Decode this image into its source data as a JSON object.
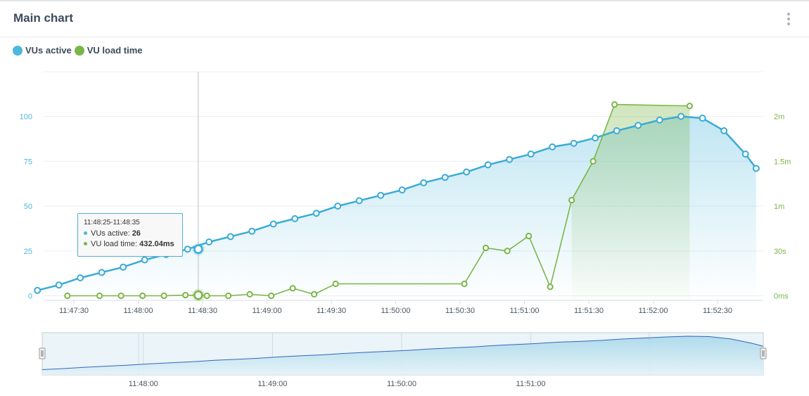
{
  "header": {
    "title": "Main chart",
    "menu_icon": "vertical-dots-icon"
  },
  "colors": {
    "vus": "#4db7dc",
    "load": "#7ab648",
    "vus_line": "#3aabd6",
    "navigator_line": "#3366bb"
  },
  "chart_data": {
    "type": "line",
    "legend": [
      {
        "name": "VUs active",
        "color": "#4db7dc"
      },
      {
        "name": "VU load time",
        "color": "#7ab648"
      }
    ],
    "legend_position": "top-left",
    "grid": true,
    "x_ticks": [
      "11:47:30",
      "11:48:00",
      "11:48:30",
      "11:49:00",
      "11:49:30",
      "11:50:00",
      "11:50:30",
      "11:51:00",
      "11:51:30",
      "11:52:00",
      "11:52:30"
    ],
    "y_left_ticks": [
      "0",
      "25",
      "50",
      "75",
      "100"
    ],
    "y_right_ticks": [
      "0ms",
      "30s",
      "1m",
      "1.5m",
      "2m"
    ],
    "y_left_range": [
      0,
      125
    ],
    "y_right_range": [
      0,
      150
    ],
    "series": [
      {
        "name": "VUs active",
        "axis": "left",
        "area": true,
        "x": [
          "11:47:13",
          "11:47:23",
          "11:47:33",
          "11:47:43",
          "11:47:53",
          "11:48:03",
          "11:48:13",
          "11:48:23",
          "11:48:33",
          "11:48:43",
          "11:48:53",
          "11:49:03",
          "11:49:13",
          "11:49:23",
          "11:49:33",
          "11:49:43",
          "11:49:53",
          "11:50:03",
          "11:50:13",
          "11:50:23",
          "11:50:33",
          "11:50:43",
          "11:50:53",
          "11:51:03",
          "11:51:13",
          "11:51:23",
          "11:51:33",
          "11:51:43",
          "11:51:53",
          "11:52:03",
          "11:52:13",
          "11:52:23",
          "11:52:33",
          "11:52:43",
          "11:52:48"
        ],
        "values": [
          3,
          6,
          10,
          13,
          16,
          20,
          23,
          26,
          30,
          33,
          36,
          40,
          43,
          46,
          50,
          53,
          56,
          59,
          63,
          66,
          69,
          73,
          76,
          79,
          83,
          85,
          88,
          92,
          95,
          98,
          100,
          99,
          92,
          79,
          71
        ]
      },
      {
        "name": "VU load time",
        "axis": "right",
        "unit": "seconds",
        "x": [
          "11:47:27",
          "11:47:42",
          "11:47:52",
          "11:48:02",
          "11:48:12",
          "11:48:22",
          "11:48:32",
          "11:48:42",
          "11:48:52",
          "11:49:02",
          "11:49:12",
          "11:49:22",
          "11:49:32",
          "11:50:32",
          "11:50:42",
          "11:50:52",
          "11:51:02",
          "11:51:12",
          "11:51:22",
          "11:51:32",
          "11:51:42",
          "11:52:17"
        ],
        "values": [
          0,
          0,
          0,
          0,
          0,
          0.43,
          0,
          0,
          1,
          0,
          5,
          1,
          8,
          8,
          32,
          30,
          40,
          6,
          64,
          90,
          128,
          127
        ]
      }
    ],
    "tooltip": {
      "range": "11:48:25-11:48:35",
      "rows": [
        {
          "label": "VUs active: ",
          "value": "26"
        },
        {
          "label": "VU load time: ",
          "value": "432.04ms"
        }
      ]
    },
    "crosshair_x": "11:48:28",
    "navigator": {
      "x_ticks": [
        "11:48:00",
        "11:49:00",
        "11:50:00",
        "11:51:00"
      ],
      "range_start": "11:47:13",
      "range_end": "11:52:48",
      "window_start": "11:47:13",
      "window_end": "11:52:48"
    }
  }
}
